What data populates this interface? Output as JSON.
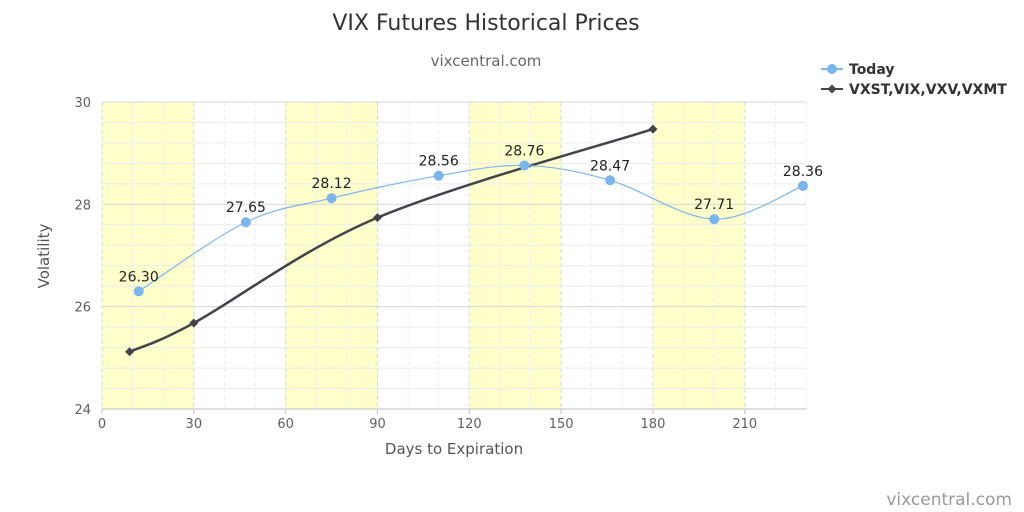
{
  "chart_data": {
    "type": "line",
    "title": "VIX Futures Historical Prices",
    "subtitle": "vixcentral.com",
    "xlabel": "Days to Expiration",
    "ylabel": "Volatility",
    "xlim": [
      0,
      230
    ],
    "ylim": [
      24,
      30
    ],
    "xticks": [
      0,
      30,
      60,
      90,
      120,
      150,
      180,
      210
    ],
    "yticks": [
      24,
      26,
      28,
      30
    ],
    "grid": true,
    "shaded_bands_x": [
      [
        0,
        30
      ],
      [
        60,
        90
      ],
      [
        120,
        150
      ],
      [
        180,
        210
      ]
    ],
    "legend_position": "top-right",
    "series": [
      {
        "name": "Today",
        "color": "#7cb5ec",
        "marker": "circle",
        "smooth": true,
        "x": [
          12,
          47,
          75,
          110,
          138,
          166,
          200,
          229
        ],
        "y": [
          26.3,
          27.65,
          28.12,
          28.56,
          28.76,
          28.47,
          27.71,
          28.36
        ],
        "labels": [
          "26.30",
          "27.65",
          "28.12",
          "28.56",
          "28.76",
          "28.47",
          "27.71",
          "28.36"
        ]
      },
      {
        "name": "VXST,VIX,VXV,VXMT",
        "color": "#434348",
        "marker": "diamond",
        "smooth": true,
        "x": [
          9,
          30,
          90,
          180
        ],
        "y": [
          25.12,
          25.68,
          27.74,
          29.47
        ]
      }
    ]
  },
  "credit": "vixcentral.com"
}
